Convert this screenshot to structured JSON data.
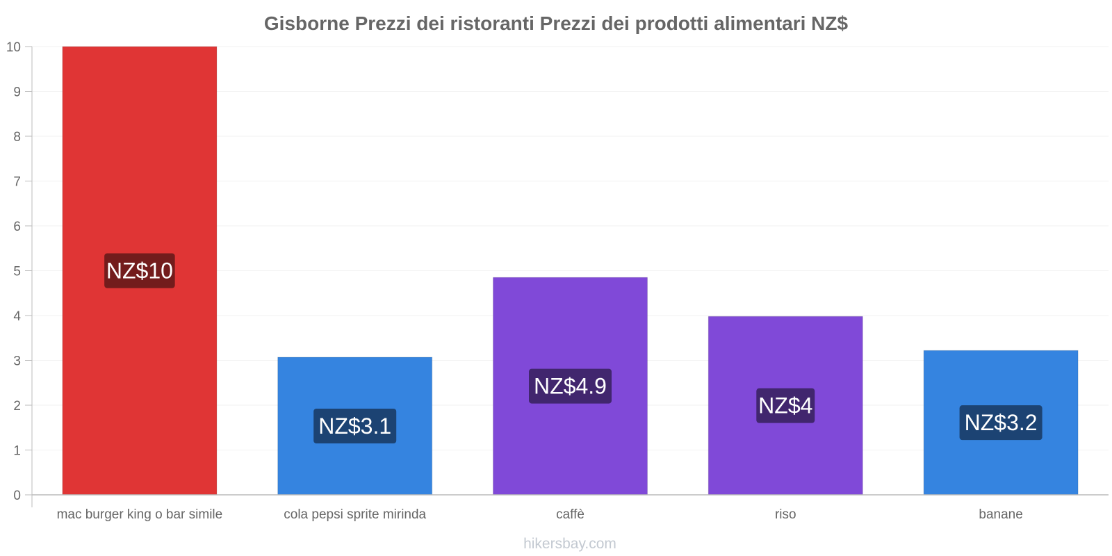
{
  "chart_data": {
    "type": "bar",
    "title": "Gisborne Prezzi dei ristoranti Prezzi dei prodotti alimentari NZ$",
    "categories": [
      "mac burger king o bar simile",
      "cola pepsi sprite mirinda",
      "caffè",
      "riso",
      "banane"
    ],
    "values": [
      10,
      3.07,
      4.85,
      3.98,
      3.22
    ],
    "data_labels": [
      "NZ$10",
      "NZ$3.1",
      "NZ$4.9",
      "NZ$4",
      "NZ$3.2"
    ],
    "bar_colors": [
      "#e03535",
      "#3584e0",
      "#8049d8",
      "#8049d8",
      "#3584e0"
    ],
    "label_bg_colors": [
      "#731c1c",
      "#1c4373",
      "#41266e",
      "#41266e",
      "#1c4373"
    ],
    "ylim": [
      0,
      10
    ],
    "yticks": [
      "0",
      "1",
      "2",
      "3",
      "4",
      "5",
      "6",
      "7",
      "8",
      "9",
      "10"
    ],
    "xlabel": "",
    "ylabel": "",
    "grid": true
  },
  "footer": "hikersbay.com"
}
